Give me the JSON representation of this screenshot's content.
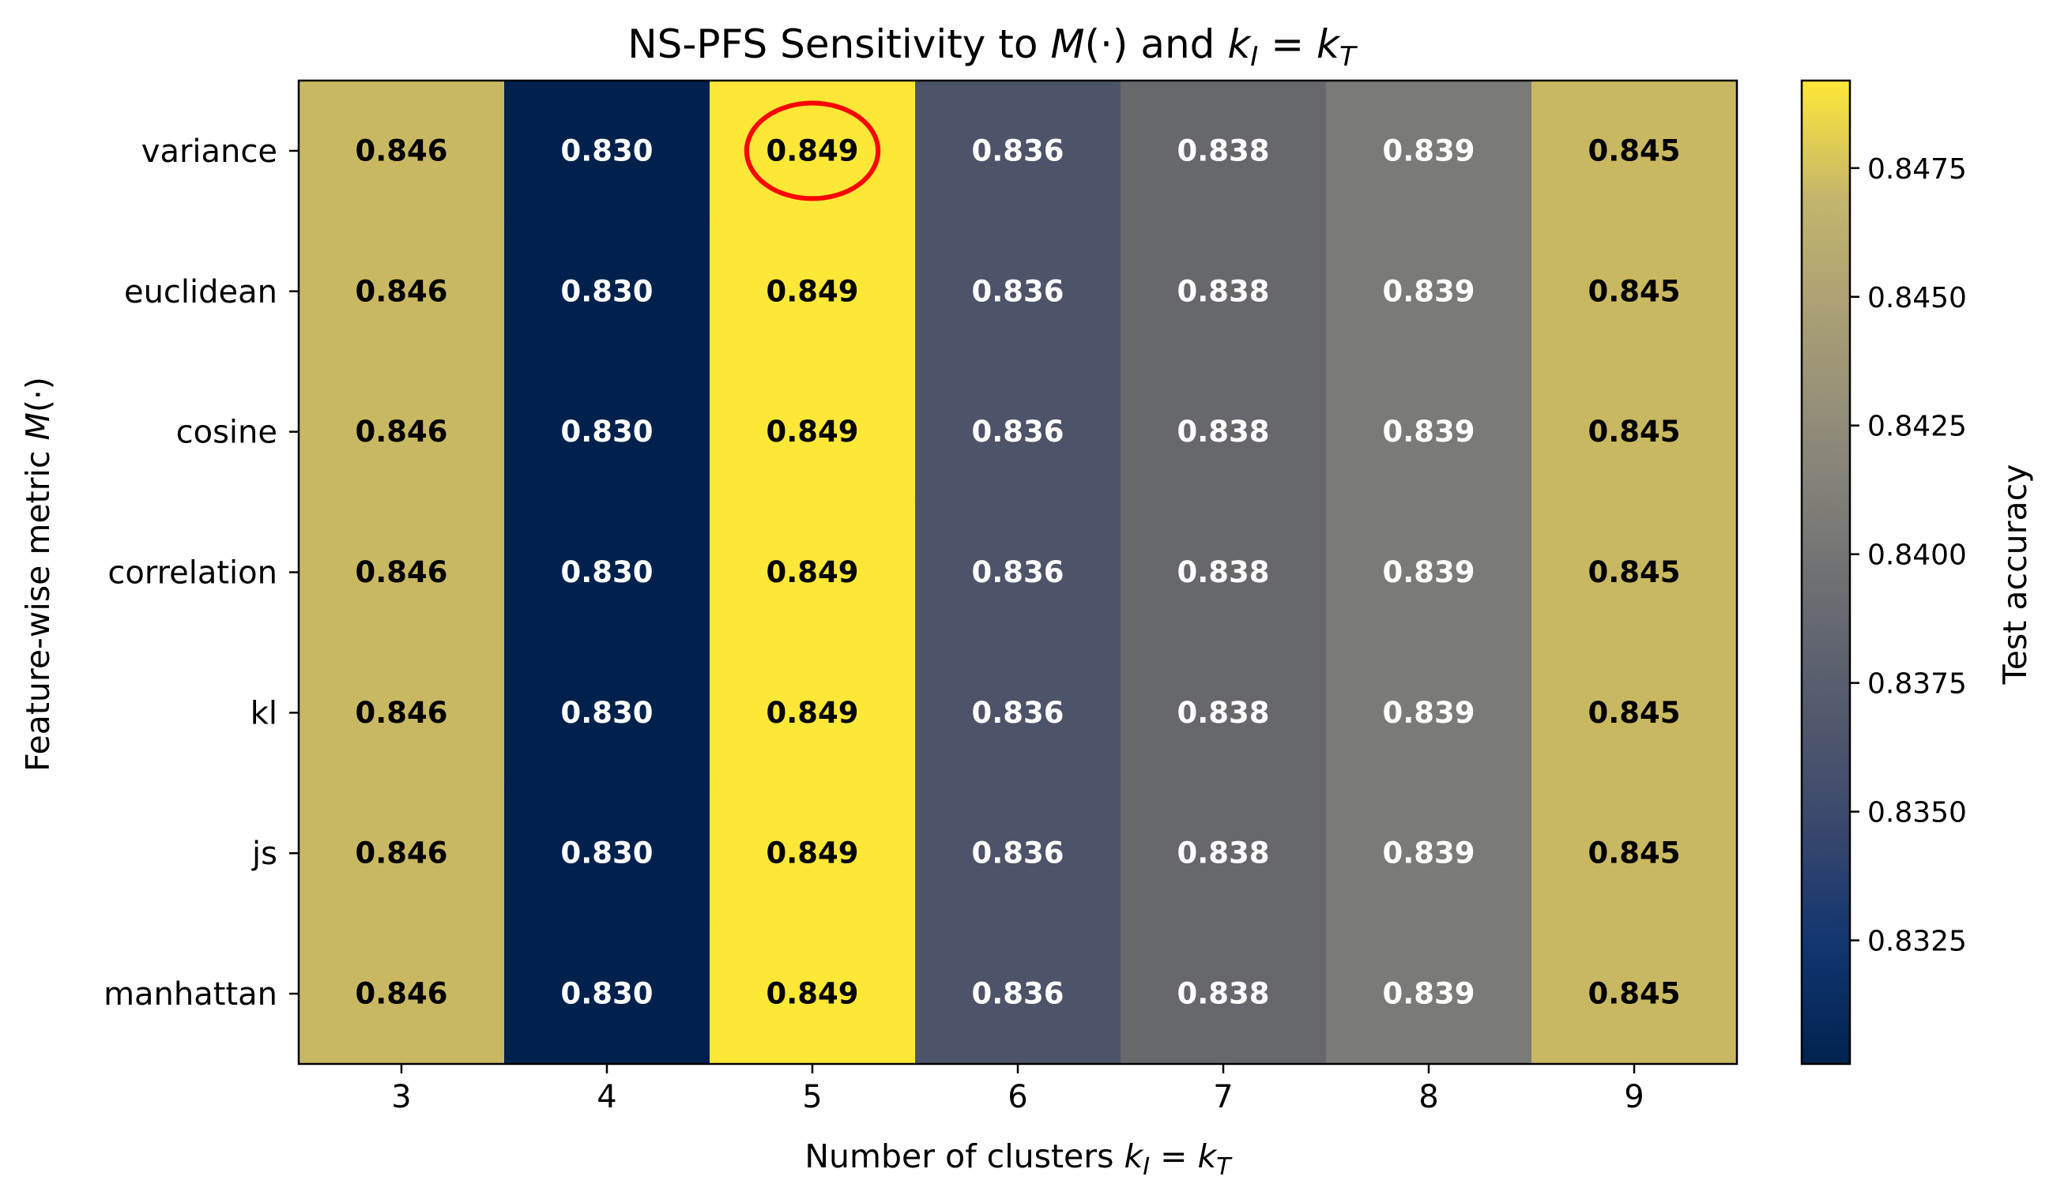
{
  "chart_data": {
    "type": "heatmap",
    "title": "NS-PFS Sensitivity to M(·) and k_I = k_T",
    "title_parts": {
      "prefix": "NS-PFS Sensitivity to ",
      "m": "M",
      "dot": "(·)",
      "and": " and ",
      "k": "k",
      "sub_i": "I",
      "eq": " = ",
      "sub_t": "T"
    },
    "xlabel": "Number of clusters k_I = k_T",
    "xlabel_parts": {
      "prefix": "Number of clusters ",
      "k": "k",
      "sub_i": "I",
      "eq": " = ",
      "sub_t": "T"
    },
    "ylabel": "Feature-wise metric M(·)",
    "ylabel_parts": {
      "prefix": "Feature-wise metric ",
      "m": "M",
      "dot": "(·)"
    },
    "x_categories": [
      "3",
      "4",
      "5",
      "6",
      "7",
      "8",
      "9"
    ],
    "y_categories": [
      "variance",
      "euclidean",
      "cosine",
      "correlation",
      "kl",
      "js",
      "manhattan"
    ],
    "values": [
      [
        0.846,
        0.83,
        0.849,
        0.836,
        0.838,
        0.839,
        0.845
      ],
      [
        0.846,
        0.83,
        0.849,
        0.836,
        0.838,
        0.839,
        0.845
      ],
      [
        0.846,
        0.83,
        0.849,
        0.836,
        0.838,
        0.839,
        0.845
      ],
      [
        0.846,
        0.83,
        0.849,
        0.836,
        0.838,
        0.839,
        0.845
      ],
      [
        0.846,
        0.83,
        0.849,
        0.836,
        0.838,
        0.839,
        0.845
      ],
      [
        0.846,
        0.83,
        0.849,
        0.836,
        0.838,
        0.839,
        0.845
      ],
      [
        0.846,
        0.83,
        0.849,
        0.836,
        0.838,
        0.839,
        0.845
      ]
    ],
    "cell_labels": [
      [
        "0.846",
        "0.830",
        "0.849",
        "0.836",
        "0.838",
        "0.839",
        "0.845"
      ],
      [
        "0.846",
        "0.830",
        "0.849",
        "0.836",
        "0.838",
        "0.839",
        "0.845"
      ],
      [
        "0.846",
        "0.830",
        "0.849",
        "0.836",
        "0.838",
        "0.839",
        "0.845"
      ],
      [
        "0.846",
        "0.830",
        "0.849",
        "0.836",
        "0.838",
        "0.839",
        "0.845"
      ],
      [
        "0.846",
        "0.830",
        "0.849",
        "0.836",
        "0.838",
        "0.839",
        "0.845"
      ],
      [
        "0.846",
        "0.830",
        "0.849",
        "0.836",
        "0.838",
        "0.839",
        "0.845"
      ],
      [
        "0.846",
        "0.830",
        "0.849",
        "0.836",
        "0.838",
        "0.839",
        "0.845"
      ]
    ],
    "cell_colors": [
      "#c9b862",
      "#01214d",
      "#fde737",
      "#4d5368",
      "#67686c",
      "#7a7a77",
      "#c9b862"
    ],
    "highlight": {
      "row": "variance",
      "col": "5",
      "color": "#ff0000"
    },
    "colormap": "cividis",
    "colorbar": {
      "label": "Test accuracy",
      "range": [
        0.8301,
        0.8492
      ],
      "ticks": [
        0.8325,
        0.835,
        0.8375,
        0.84,
        0.8425,
        0.845,
        0.8475
      ],
      "tick_labels": [
        "0.8325",
        "0.8350",
        "0.8375",
        "0.8400",
        "0.8425",
        "0.8450",
        "0.8475"
      ]
    },
    "grid": false,
    "legend": "none"
  }
}
